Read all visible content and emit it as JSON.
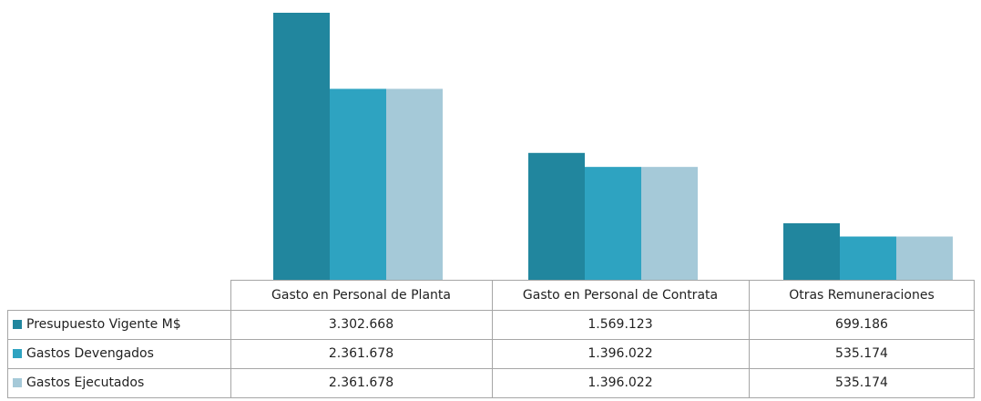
{
  "chart_data": {
    "type": "bar",
    "categories": [
      "Gasto en Personal de Planta",
      "Gasto en Personal de Contrata",
      "Otras Remuneraciones"
    ],
    "series": [
      {
        "name": "Presupuesto Vigente M$",
        "color": "#21869e",
        "values": [
          3302668,
          1569123,
          699186
        ],
        "value_labels": [
          "3.302.668",
          "1.569.123",
          "699.186"
        ]
      },
      {
        "name": "Gastos Devengados",
        "color": "#2ea3c1",
        "values": [
          2361678,
          1396022,
          535174
        ],
        "value_labels": [
          "2.361.678",
          "1.396.022",
          "535.174"
        ]
      },
      {
        "name": "Gastos Ejecutados",
        "color": "#a5c9d8",
        "values": [
          2361678,
          1396022,
          535174
        ],
        "value_labels": [
          "2.361.678",
          "1.396.022",
          "535.174"
        ]
      }
    ]
  }
}
